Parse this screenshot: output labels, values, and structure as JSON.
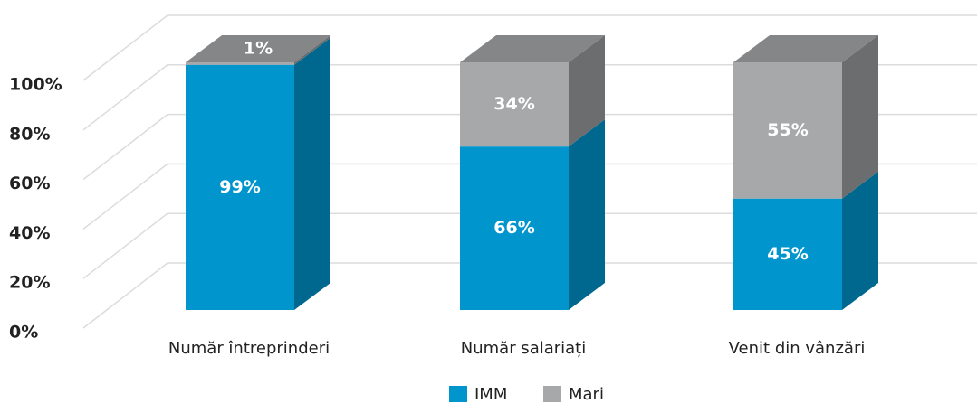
{
  "chart_data": {
    "type": "bar3d_stacked",
    "categories": [
      "Număr întreprinderi",
      "Număr salariați",
      "Venit din vânzări"
    ],
    "series": [
      {
        "name": "IMM",
        "color": "#0095cc",
        "values": [
          99,
          66,
          45
        ],
        "value_labels": [
          "99%",
          "66%",
          "45%"
        ]
      },
      {
        "name": "Mari",
        "color": "#a6a8a9",
        "values": [
          1,
          34,
          55
        ],
        "value_labels": [
          "1%",
          "34%",
          "55%"
        ]
      }
    ],
    "ylim": [
      0,
      100
    ],
    "yticks": [
      {
        "value": 0,
        "label": "0%"
      },
      {
        "value": 20,
        "label": "20%"
      },
      {
        "value": 40,
        "label": "40%"
      },
      {
        "value": 60,
        "label": "60%"
      },
      {
        "value": 80,
        "label": "80%"
      },
      {
        "value": 100,
        "label": "100%"
      }
    ],
    "grid": true,
    "legend": "bottom"
  }
}
